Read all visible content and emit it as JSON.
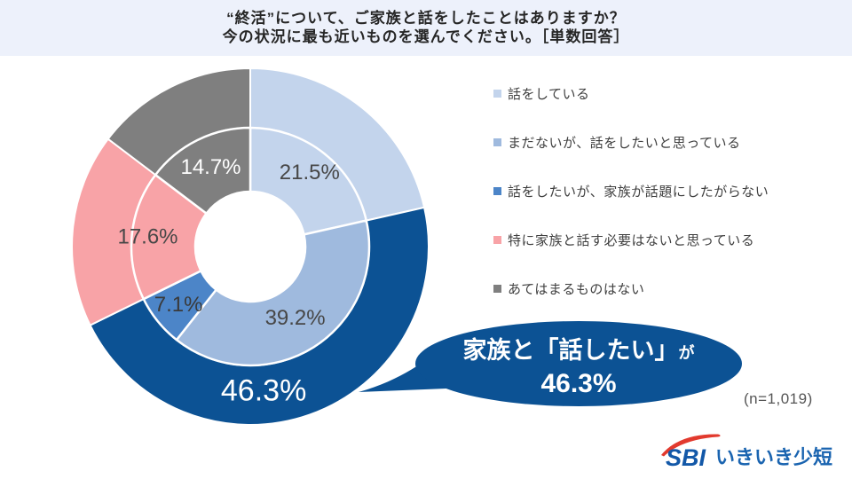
{
  "title": {
    "line1": "“終活”について、ご家族と話をしたことはありますか？",
    "line2": "今の状況に最も近いものを選んでください。［単数回答］"
  },
  "chart_data": {
    "type": "donut",
    "title": "“終活”について、ご家族と話をしたことはありますか？ 今の状況に最も近いものを選んでください。［単数回答］",
    "sample_size": "(n=1,019)",
    "legend_position": "right",
    "inner_ring": {
      "categories": [
        "話をしている",
        "まだないが、話をしたいと思っている",
        "話をしたいが、家族が話題にしたがらない",
        "特に家族と話す必要はないと思っている",
        "あてはまるものはない"
      ],
      "values": [
        21.5,
        39.2,
        7.1,
        17.6,
        14.7
      ],
      "labels": [
        "21.5%",
        "39.2%",
        "7.1%",
        "17.6%",
        "14.7%"
      ],
      "colors": [
        "#c3d4ec",
        "#9fbade",
        "#4c85c8",
        "#f8a3a7",
        "#7f7f7f"
      ],
      "label_colors": [
        "#474747",
        "#474747",
        "#3a3a3a",
        "#474747",
        "#ffffff"
      ]
    },
    "outer_ring": {
      "categories": [
        "話をしている",
        "家族と「話したい」",
        "特に家族と話す必要はないと思っている",
        "あてはまるものはない"
      ],
      "values": [
        21.5,
        46.3,
        17.6,
        14.7
      ],
      "labels": [
        "",
        "46.3%",
        "",
        ""
      ],
      "colors": [
        "#c3d4ec",
        "#0c5294",
        "#f8a3a7",
        "#7f7f7f"
      ],
      "label_colors": [
        "",
        "#ffffff",
        "",
        ""
      ]
    }
  },
  "legend": {
    "items": [
      {
        "label": "話をしている",
        "color": "#c3d4ec"
      },
      {
        "label": "まだないが、話をしたいと思っている",
        "color": "#9fbade"
      },
      {
        "label": "話をしたいが、家族が話題にしたがらない",
        "color": "#4c85c8"
      },
      {
        "label": "特に家族と話す必要はないと思っている",
        "color": "#f8a3a7"
      },
      {
        "label": "あてはまるものはない",
        "color": "#7f7f7f"
      }
    ]
  },
  "callout": {
    "line1": "家族と「話したい」",
    "line1_suffix": "が",
    "line2": "46.3%",
    "color": "#0c5294"
  },
  "sample_size": "(n=1,019)",
  "logo": {
    "sbi": "SBI",
    "brand": "いきいき少短"
  }
}
